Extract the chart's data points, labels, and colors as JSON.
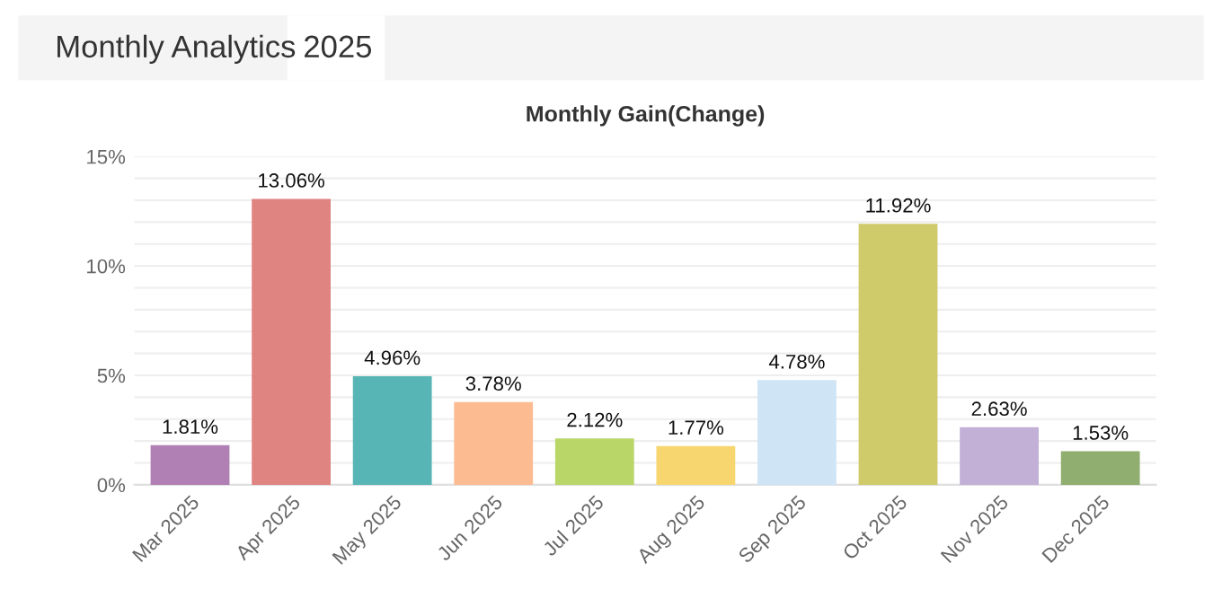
{
  "chart_data": {
    "type": "bar",
    "title": "Monthly Gain(Change)",
    "annotations": [
      "Monthly Analytics",
      "2025"
    ],
    "categories": [
      "Mar 2025",
      "Apr 2025",
      "May 2025",
      "Jun 2025",
      "Jul 2025",
      "Aug 2025",
      "Sep 2025",
      "Oct 2025",
      "Nov 2025",
      "Dec 2025"
    ],
    "values": [
      1.81,
      13.06,
      4.96,
      3.78,
      2.12,
      1.77,
      4.78,
      11.92,
      2.63,
      1.53
    ],
    "value_labels": [
      "1.81%",
      "13.06%",
      "4.96%",
      "3.78%",
      "2.12%",
      "1.77%",
      "4.78%",
      "11.92%",
      "2.63%",
      "1.53%"
    ],
    "colors": [
      "#b07fb3",
      "#e08482",
      "#58b5b5",
      "#fdbb92",
      "#b9d768",
      "#f7d66f",
      "#cfe5f6",
      "#cfca6a",
      "#c3b0d6",
      "#8fae6f"
    ],
    "ylim": [
      0,
      15
    ],
    "yticks": [
      {
        "value": 0,
        "label": "0%"
      },
      {
        "value": 1,
        "label": null
      },
      {
        "value": 2,
        "label": null
      },
      {
        "value": 3,
        "label": null
      },
      {
        "value": 4,
        "label": null
      },
      {
        "value": 5,
        "label": "5%"
      },
      {
        "value": 6,
        "label": null
      },
      {
        "value": 7,
        "label": null
      },
      {
        "value": 8,
        "label": null
      },
      {
        "value": 9,
        "label": null
      },
      {
        "value": 10,
        "label": "10%"
      },
      {
        "value": 11,
        "label": null
      },
      {
        "value": 12,
        "label": null
      },
      {
        "value": 13,
        "label": null
      },
      {
        "value": 14,
        "label": null
      },
      {
        "value": 15,
        "label": "15%"
      }
    ],
    "grid": "y",
    "legend": false
  }
}
